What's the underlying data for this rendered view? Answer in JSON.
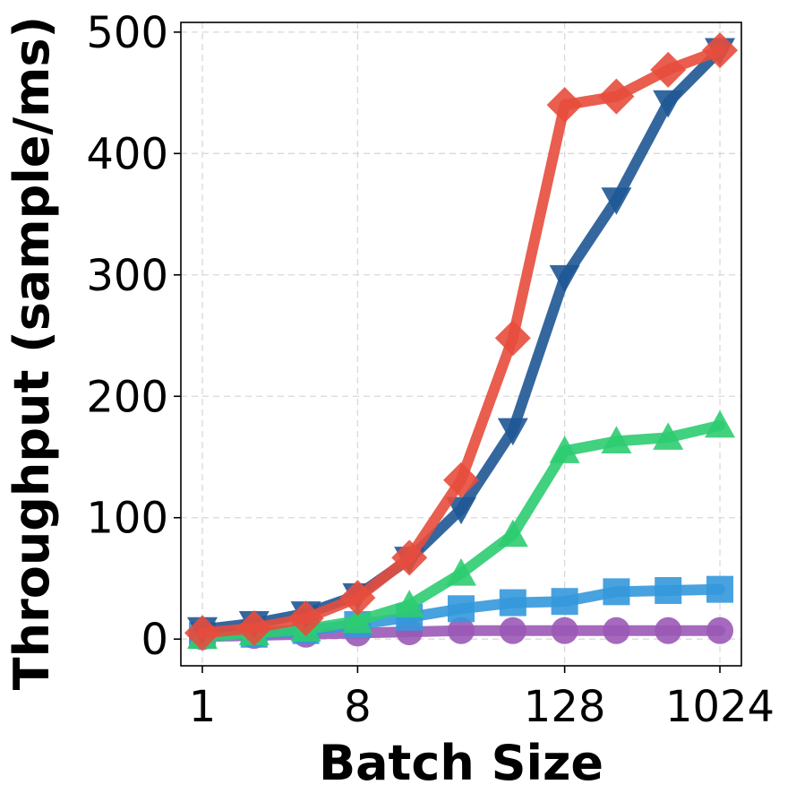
{
  "chart_data": {
    "type": "line",
    "title": "",
    "xlabel": "Batch Size",
    "ylabel": "Throughput (sample/ms)",
    "x_scale": "log2",
    "x": [
      1,
      2,
      4,
      8,
      16,
      32,
      64,
      128,
      256,
      512,
      1024
    ],
    "xticks": [
      1,
      8,
      128,
      1024
    ],
    "xtick_labels": [
      "1",
      "8",
      "128",
      "1024"
    ],
    "xlim": [
      0.75,
      1365
    ],
    "ylim": [
      -22,
      508
    ],
    "yticks": [
      0,
      100,
      200,
      300,
      400,
      500
    ],
    "ytick_labels": [
      "0",
      "100",
      "200",
      "300",
      "400",
      "500"
    ],
    "grid": true,
    "legend": "none",
    "series": [
      {
        "name": "purple-circle",
        "color": "#9b59b6",
        "marker": "circle",
        "values": [
          2,
          3,
          4,
          5,
          6,
          7,
          7,
          7,
          7,
          7,
          7
        ]
      },
      {
        "name": "blue-square",
        "color": "#3498db",
        "marker": "square",
        "values": [
          3,
          4,
          7,
          12,
          18,
          25,
          30,
          31,
          39,
          40,
          41
        ]
      },
      {
        "name": "green-triangle-up",
        "color": "#2ecc71",
        "marker": "triangle-up",
        "values": [
          2,
          5,
          8,
          15,
          28,
          54,
          86,
          155,
          163,
          166,
          176
        ]
      },
      {
        "name": "navy-triangle-down",
        "color": "#1f5795",
        "marker": "triangle-down",
        "values": [
          8,
          13,
          21,
          36,
          66,
          107,
          172,
          298,
          362,
          442,
          485
        ]
      },
      {
        "name": "red-diamond",
        "color": "#e74c3c",
        "marker": "diamond",
        "values": [
          5,
          9,
          17,
          34,
          67,
          131,
          248,
          440,
          447,
          469,
          485
        ]
      }
    ]
  }
}
